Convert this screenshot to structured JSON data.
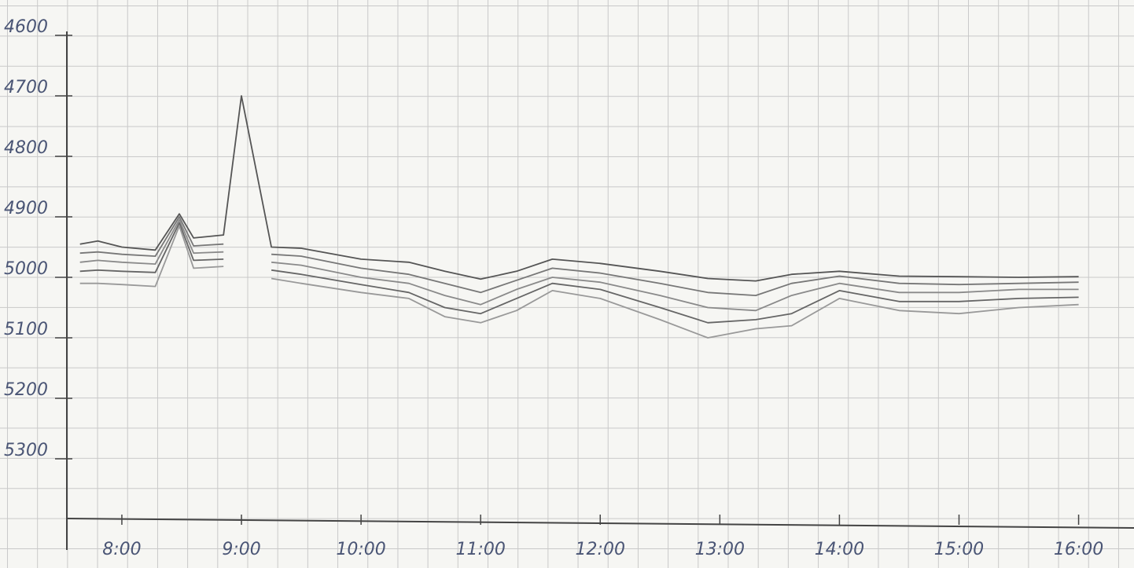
{
  "chart_data": {
    "type": "line",
    "x": [
      7.65,
      7.8,
      8.0,
      8.28,
      8.48,
      8.6,
      8.85,
      9.0,
      9.25,
      9.5,
      10.0,
      10.4,
      10.7,
      11.0,
      11.3,
      11.6,
      12.0,
      12.5,
      12.9,
      13.3,
      13.6,
      14.0,
      14.5,
      15.0,
      15.5,
      16.0
    ],
    "series": [
      {
        "color": "#555555",
        "values": [
          4945,
          4940,
          4950,
          4955,
          4895,
          4935,
          4930,
          4700,
          4950,
          4952,
          4970,
          4975,
          4990,
          5003,
          4990,
          4970,
          4977,
          4990,
          5002,
          5006,
          4995,
          4990,
          4998,
          4999,
          5000,
          4999
        ]
      },
      {
        "color": "#777777",
        "values": [
          4960,
          4958,
          4962,
          4965,
          4900,
          4948,
          4945,
          null,
          4962,
          4965,
          4985,
          4995,
          5010,
          5025,
          5005,
          4985,
          4993,
          5010,
          5025,
          5030,
          5010,
          4998,
          5010,
          5012,
          5010,
          5008
        ]
      },
      {
        "color": "#8a8a8a",
        "values": [
          4975,
          4972,
          4975,
          4978,
          4905,
          4960,
          4958,
          null,
          4975,
          4980,
          5000,
          5010,
          5030,
          5045,
          5020,
          5000,
          5008,
          5030,
          5050,
          5055,
          5030,
          5010,
          5025,
          5025,
          5020,
          5020
        ]
      },
      {
        "color": "#666666",
        "values": [
          4990,
          4988,
          4990,
          4992,
          4910,
          4972,
          4970,
          null,
          4988,
          4995,
          5012,
          5025,
          5050,
          5060,
          5035,
          5010,
          5020,
          5050,
          5075,
          5070,
          5060,
          5022,
          5040,
          5040,
          5035,
          5033
        ]
      },
      {
        "color": "#999999",
        "values": [
          5010,
          5010,
          5012,
          5015,
          4915,
          4985,
          4982,
          null,
          5002,
          5010,
          5025,
          5035,
          5065,
          5075,
          5055,
          5022,
          5035,
          5070,
          5100,
          5085,
          5080,
          5035,
          5055,
          5060,
          5050,
          5045
        ]
      }
    ],
    "xlim": [
      7.54,
      16.45
    ],
    "ylim": [
      5400,
      4600
    ],
    "yticks": [
      4600,
      4700,
      4800,
      4900,
      5000,
      5100,
      5200,
      5300
    ],
    "xticks": [
      {
        "value": 8,
        "label": "8:00"
      },
      {
        "value": 9,
        "label": "9:00"
      },
      {
        "value": 10,
        "label": "10:00"
      },
      {
        "value": 11,
        "label": "11:00"
      },
      {
        "value": 12,
        "label": "12:00"
      },
      {
        "value": 13,
        "label": "13:00"
      },
      {
        "value": 14,
        "label": "14:00"
      },
      {
        "value": 15,
        "label": "15:00"
      },
      {
        "value": 16,
        "label": "16:00"
      }
    ]
  }
}
